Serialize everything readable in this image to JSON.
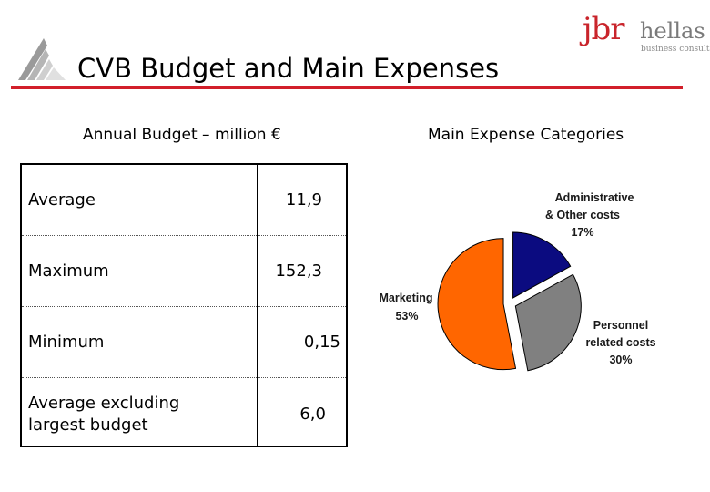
{
  "title": "CVB Budget and Main Expenses",
  "brand": {
    "name_part1": "jbr",
    "name_part2": "hellas",
    "tagline": "business consultants"
  },
  "budget": {
    "heading": "Annual Budget – million €",
    "rows": [
      {
        "label": "Average",
        "value": "11,9"
      },
      {
        "label": "Maximum",
        "value": "152,3"
      },
      {
        "label": "Minimum",
        "value": "0,15"
      },
      {
        "label_line1": "Average excluding",
        "label_line2": "largest budget",
        "value": "6,0"
      }
    ]
  },
  "chart_data": {
    "type": "pie",
    "title": "Main Expense Categories",
    "slices": [
      {
        "label_line1": "Administrative",
        "label_line2": "& Other costs",
        "percent_label": "17%",
        "value": 17,
        "color": "#0b0b80"
      },
      {
        "label_line1": "Personnel",
        "label_line2": "related costs",
        "percent_label": "30%",
        "value": 30,
        "color": "#808080"
      },
      {
        "label_line1": "Marketing",
        "percent_label": "53%",
        "value": 53,
        "color": "#ff6600"
      }
    ]
  }
}
